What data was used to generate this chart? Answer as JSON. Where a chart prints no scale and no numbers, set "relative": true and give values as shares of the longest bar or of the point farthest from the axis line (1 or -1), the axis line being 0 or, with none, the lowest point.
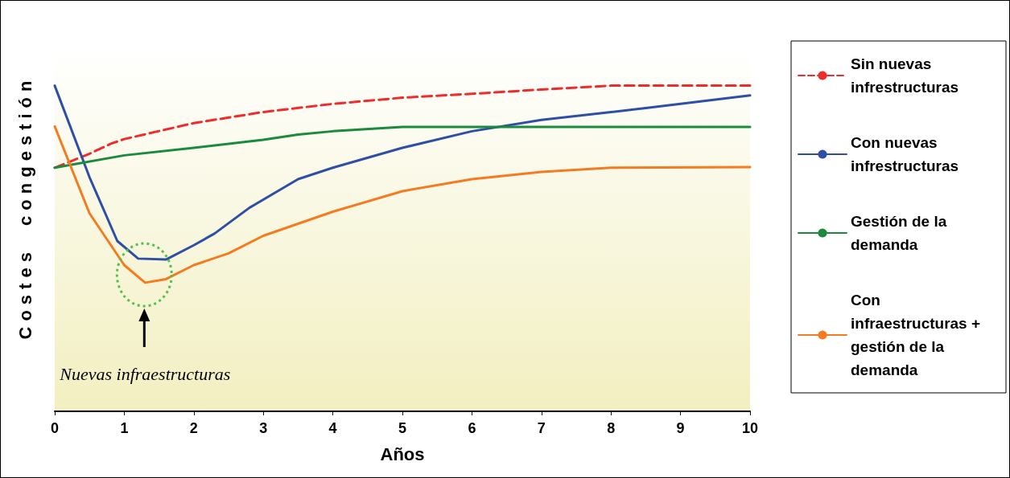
{
  "chart_data": {
    "type": "line",
    "relative": true,
    "xlabel": "Años",
    "ylabel": "Costes  congestión",
    "xlim": [
      0,
      10
    ],
    "xticks": [
      0,
      1,
      2,
      3,
      4,
      5,
      6,
      7,
      8,
      9,
      10
    ],
    "legend": "right",
    "grid": false,
    "marker": "none",
    "annotations": [
      {
        "text": "Nuevas infraestructuras",
        "x": 1.3
      }
    ],
    "series": [
      {
        "name": "Sin nuevas infrestructuras",
        "color": "#ee2c2c",
        "line_style": "dashed",
        "x": [
          0,
          0.5,
          0.8,
          1,
          2,
          3,
          4,
          5,
          6,
          7,
          8,
          10
        ],
        "values": [
          0.748,
          0.791,
          0.821,
          0.836,
          0.885,
          0.919,
          0.944,
          0.963,
          0.975,
          0.988,
          1,
          1
        ]
      },
      {
        "name": "Con nuevas infrestructuras",
        "color": "#2e4fa3",
        "x": [
          0,
          0.5,
          0.9,
          1.2,
          1.6,
          2,
          2.3,
          2.8,
          3.5,
          4,
          5,
          6,
          7,
          8,
          8.5,
          10
        ],
        "values": [
          1,
          0.719,
          0.523,
          0.469,
          0.466,
          0.51,
          0.546,
          0.625,
          0.713,
          0.748,
          0.809,
          0.86,
          0.895,
          0.919,
          0.931,
          0.97
        ]
      },
      {
        "name": "Gestión de la demanda",
        "color": "#1a8a3c",
        "x": [
          0,
          1,
          2,
          3,
          3.5,
          4,
          5,
          10
        ],
        "values": [
          0.748,
          0.786,
          0.809,
          0.834,
          0.85,
          0.86,
          0.873,
          0.873
        ]
      },
      {
        "name": "Con infraestructuras + gestión de la demanda",
        "color": "#f47b20",
        "x": [
          0,
          0.5,
          1,
          1.3,
          1.6,
          2,
          2.5,
          3,
          4,
          5,
          6,
          7,
          8,
          10
        ],
        "values": [
          0.875,
          0.608,
          0.449,
          0.395,
          0.406,
          0.449,
          0.485,
          0.539,
          0.613,
          0.676,
          0.713,
          0.735,
          0.748,
          0.75
        ]
      }
    ]
  }
}
